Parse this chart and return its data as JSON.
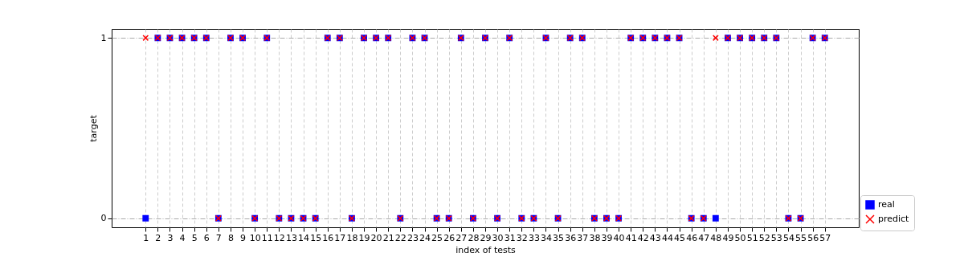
{
  "chart_data": {
    "type": "scatter",
    "xlabel": "index of tests",
    "ylabel": "target",
    "x": [
      1,
      2,
      3,
      4,
      5,
      6,
      7,
      8,
      9,
      10,
      11,
      12,
      13,
      14,
      15,
      16,
      17,
      18,
      19,
      20,
      21,
      22,
      23,
      24,
      25,
      26,
      27,
      28,
      29,
      30,
      31,
      32,
      33,
      34,
      35,
      36,
      37,
      38,
      39,
      40,
      41,
      42,
      43,
      44,
      45,
      46,
      47,
      48,
      49,
      50,
      51,
      52,
      53,
      54,
      55,
      56,
      57
    ],
    "series": [
      {
        "name": "real",
        "color": "#0000ff",
        "marker": "square",
        "values": [
          0,
          1,
          1,
          1,
          1,
          1,
          0,
          1,
          1,
          0,
          1,
          0,
          0,
          0,
          0,
          1,
          1,
          0,
          1,
          1,
          1,
          0,
          1,
          1,
          0,
          0,
          1,
          0,
          1,
          0,
          1,
          0,
          0,
          1,
          0,
          1,
          1,
          0,
          0,
          0,
          1,
          1,
          1,
          1,
          1,
          0,
          0,
          0,
          1,
          1,
          1,
          1,
          1,
          0,
          0,
          1,
          1
        ]
      },
      {
        "name": "predict",
        "color": "#ff0000",
        "marker": "cross",
        "values": [
          1,
          1,
          1,
          1,
          1,
          1,
          0,
          1,
          1,
          0,
          1,
          0,
          0,
          0,
          0,
          1,
          1,
          0,
          1,
          1,
          1,
          0,
          1,
          1,
          0,
          0,
          1,
          0,
          1,
          0,
          1,
          0,
          0,
          1,
          0,
          1,
          1,
          0,
          0,
          0,
          1,
          1,
          1,
          1,
          1,
          0,
          0,
          1,
          1,
          1,
          1,
          1,
          1,
          0,
          0,
          1,
          1
        ]
      }
    ],
    "xlim": [
      -1.8,
      59.8
    ],
    "xticks": [
      1,
      2,
      3,
      4,
      5,
      6,
      7,
      8,
      9,
      10,
      11,
      12,
      13,
      14,
      15,
      16,
      17,
      18,
      19,
      20,
      21,
      22,
      23,
      24,
      25,
      26,
      27,
      28,
      29,
      30,
      31,
      32,
      33,
      34,
      35,
      36,
      37,
      38,
      39,
      40,
      41,
      42,
      43,
      44,
      45,
      46,
      47,
      48,
      49,
      50,
      51,
      52,
      53,
      54,
      55,
      56,
      57
    ],
    "ylim": [
      -0.05,
      1.05
    ],
    "yticks": [
      0,
      1
    ],
    "grid": true,
    "legend": "bottom right"
  }
}
